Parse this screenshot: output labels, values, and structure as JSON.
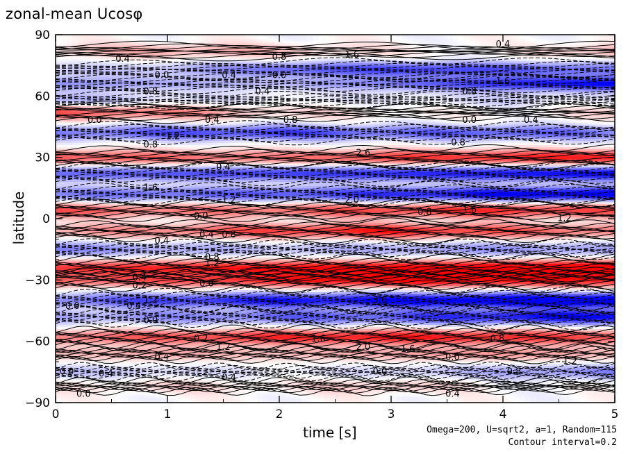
{
  "chart_data": {
    "type": "heatmap",
    "title": "zonal-mean Ucosφ",
    "xlabel": "time [s]",
    "ylabel": "latitude",
    "xlim": [
      0,
      5
    ],
    "ylim": [
      -90,
      90
    ],
    "x_ticks": [
      "0",
      "1",
      "2",
      "3",
      "4",
      "5"
    ],
    "y_ticks": [
      "90",
      "60",
      "30",
      "0",
      "−30",
      "−60",
      "−90"
    ],
    "annotation_lines": [
      "Omega=200, U=sqrt2, a=1, Random=115",
      "Contour interval=0.2"
    ],
    "colors": {
      "positive": "#e21e1e",
      "negative": "#1e2ee6",
      "zero": "#ffffff",
      "contour": "#000000"
    },
    "bands": [
      {
        "lat": 82,
        "sign": 1,
        "amp": [
          0.4,
          0.8,
          0.6,
          0.2,
          0.0,
          0.8
        ]
      },
      {
        "lat": 73,
        "sign": -1,
        "amp": [
          0.4,
          0.6,
          1.4,
          1.8,
          1.6,
          1.2
        ]
      },
      {
        "lat": 66,
        "sign": -1,
        "amp": [
          1.0,
          0.8,
          0.6,
          1.2,
          2.0,
          2.4
        ]
      },
      {
        "lat": 58,
        "sign": -1,
        "amp": [
          0.8,
          0.4,
          0.2,
          0.2,
          0.4,
          0.2
        ]
      },
      {
        "lat": 52,
        "sign": 1,
        "amp": [
          1.6,
          1.2,
          0.4,
          0.2,
          0.0,
          0.4
        ]
      },
      {
        "lat": 42,
        "sign": -1,
        "amp": [
          1.2,
          1.6,
          1.8,
          1.4,
          1.6,
          1.2
        ]
      },
      {
        "lat": 30,
        "sign": 1,
        "amp": [
          1.6,
          1.4,
          1.2,
          1.8,
          2.0,
          2.2
        ]
      },
      {
        "lat": 22,
        "sign": -1,
        "amp": [
          1.4,
          1.6,
          1.8,
          2.0,
          2.2,
          2.4
        ]
      },
      {
        "lat": 12,
        "sign": -1,
        "amp": [
          1.2,
          1.4,
          1.6,
          2.0,
          2.4,
          2.6
        ]
      },
      {
        "lat": 4,
        "sign": 1,
        "amp": [
          1.6,
          1.2,
          1.4,
          1.8,
          2.0,
          1.6
        ]
      },
      {
        "lat": -6,
        "sign": 1,
        "amp": [
          0.8,
          1.2,
          1.8,
          2.2,
          1.6,
          1.2
        ]
      },
      {
        "lat": -15,
        "sign": -1,
        "amp": [
          1.2,
          0.8,
          0.6,
          0.8,
          1.0,
          0.8
        ]
      },
      {
        "lat": -24,
        "sign": 1,
        "amp": [
          1.8,
          2.0,
          2.2,
          2.4,
          2.6,
          2.8
        ]
      },
      {
        "lat": -30,
        "sign": 1,
        "amp": [
          1.4,
          1.6,
          2.0,
          2.4,
          2.2,
          2.0
        ]
      },
      {
        "lat": -40,
        "sign": -1,
        "amp": [
          1.2,
          1.8,
          2.2,
          2.4,
          2.8,
          3.0
        ]
      },
      {
        "lat": -48,
        "sign": -1,
        "amp": [
          0.8,
          1.0,
          1.4,
          1.6,
          2.2,
          2.4
        ]
      },
      {
        "lat": -58,
        "sign": 1,
        "amp": [
          1.2,
          1.6,
          2.0,
          2.2,
          2.0,
          1.6
        ]
      },
      {
        "lat": -66,
        "sign": 1,
        "amp": [
          0.6,
          0.8,
          0.6,
          0.8,
          1.0,
          0.6
        ]
      },
      {
        "lat": -75,
        "sign": -1,
        "amp": [
          0.6,
          0.4,
          0.2,
          0.4,
          0.8,
          1.2
        ]
      },
      {
        "lat": -82,
        "sign": 1,
        "amp": [
          0.2,
          0.4,
          0.2,
          0.6,
          0.0,
          0.0
        ]
      }
    ],
    "contour_labels": [
      {
        "t": 0.6,
        "lat": 78,
        "text": "0.4"
      },
      {
        "t": 2.0,
        "lat": 79,
        "text": "0.8"
      },
      {
        "t": 0.95,
        "lat": 70,
        "text": "0.0"
      },
      {
        "t": 1.55,
        "lat": 70,
        "text": "0.4"
      },
      {
        "t": 2.0,
        "lat": 70,
        "text": "0.0"
      },
      {
        "t": 2.65,
        "lat": 80,
        "text": "1.6"
      },
      {
        "t": 4.0,
        "lat": 85,
        "text": "0.4"
      },
      {
        "t": 4.0,
        "lat": 67,
        "text": "1.6"
      },
      {
        "t": 0.85,
        "lat": 62,
        "text": "0.8"
      },
      {
        "t": 1.85,
        "lat": 62,
        "text": "0.4"
      },
      {
        "t": 3.7,
        "lat": 62,
        "text": "0.8"
      },
      {
        "t": 0.35,
        "lat": 48,
        "text": "0.0"
      },
      {
        "t": 1.4,
        "lat": 48,
        "text": "0.4"
      },
      {
        "t": 2.1,
        "lat": 48,
        "text": "0.8"
      },
      {
        "t": 3.7,
        "lat": 48,
        "text": "0.0"
      },
      {
        "t": 4.25,
        "lat": 48,
        "text": "0.4"
      },
      {
        "t": 1.05,
        "lat": 40,
        "text": "1.2"
      },
      {
        "t": 0.85,
        "lat": 36,
        "text": "0.8"
      },
      {
        "t": 2.75,
        "lat": 32,
        "text": "2.6"
      },
      {
        "t": 3.6,
        "lat": 37,
        "text": "0.8"
      },
      {
        "t": 1.5,
        "lat": 25,
        "text": "0.4"
      },
      {
        "t": 0.85,
        "lat": 15,
        "text": "1.6"
      },
      {
        "t": 1.55,
        "lat": 9,
        "text": "1.2"
      },
      {
        "t": 2.65,
        "lat": 9,
        "text": "2.0"
      },
      {
        "t": 3.7,
        "lat": 4,
        "text": "1.6"
      },
      {
        "t": 3.3,
        "lat": 3,
        "text": "0.8"
      },
      {
        "t": 1.3,
        "lat": 1,
        "text": "0.0"
      },
      {
        "t": 4.55,
        "lat": 0,
        "text": "1.2"
      },
      {
        "t": 0.95,
        "lat": -11,
        "text": "0.4"
      },
      {
        "t": 1.35,
        "lat": -8,
        "text": "0.4"
      },
      {
        "t": 1.55,
        "lat": -8,
        "text": "0.8"
      },
      {
        "t": 1.4,
        "lat": -19,
        "text": "0.8"
      },
      {
        "t": 1.4,
        "lat": -22,
        "text": "1.2"
      },
      {
        "t": 0.75,
        "lat": -29,
        "text": "0.4"
      },
      {
        "t": 1.35,
        "lat": -32,
        "text": "0.0"
      },
      {
        "t": 0.75,
        "lat": -33,
        "text": "0.2"
      },
      {
        "t": 0.85,
        "lat": -40,
        "text": "1.2"
      },
      {
        "t": 0.15,
        "lat": -43,
        "text": "0.0"
      },
      {
        "t": 0.7,
        "lat": -43,
        "text": "0.4"
      },
      {
        "t": 2.9,
        "lat": -40,
        "text": "3.6"
      },
      {
        "t": 0.85,
        "lat": -50,
        "text": "0.0"
      },
      {
        "t": 1.3,
        "lat": -59,
        "text": "0.2"
      },
      {
        "t": 1.5,
        "lat": -63,
        "text": "1.2"
      },
      {
        "t": 2.35,
        "lat": -59,
        "text": "1.6"
      },
      {
        "t": 2.75,
        "lat": -63,
        "text": "2.0"
      },
      {
        "t": 3.15,
        "lat": -64,
        "text": "1.6"
      },
      {
        "t": 3.95,
        "lat": -59,
        "text": "0.8"
      },
      {
        "t": 0.95,
        "lat": -68,
        "text": "0.4"
      },
      {
        "t": 0.1,
        "lat": -75,
        "text": "0.0"
      },
      {
        "t": 0.45,
        "lat": -76,
        "text": "0.4"
      },
      {
        "t": 0.25,
        "lat": -86,
        "text": "0.0"
      },
      {
        "t": 1.55,
        "lat": -78,
        "text": "0.4"
      },
      {
        "t": 2.9,
        "lat": -75,
        "text": "0.0"
      },
      {
        "t": 3.55,
        "lat": -68,
        "text": "0.0"
      },
      {
        "t": 3.55,
        "lat": -86,
        "text": "0.4"
      },
      {
        "t": 4.1,
        "lat": -75,
        "text": "0.8"
      },
      {
        "t": 4.6,
        "lat": -70,
        "text": "1.2"
      }
    ]
  }
}
